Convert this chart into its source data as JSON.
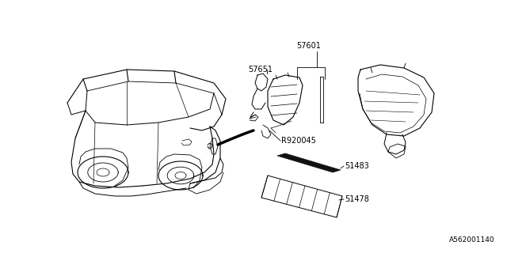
{
  "bg_color": "#ffffff",
  "diagram_id": "A562001140",
  "line_color": "#000000",
  "text_color": "#000000",
  "font_size": 7.0,
  "footnote": "A562001140"
}
